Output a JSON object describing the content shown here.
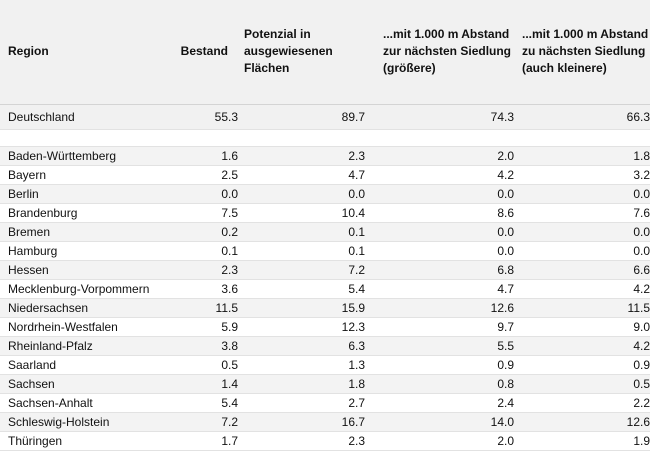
{
  "table": {
    "headers": {
      "region": "Region",
      "bestand": "Bestand",
      "potenzial": [
        "Potenzial in",
        "ausgewiesenen",
        "Flächen"
      ],
      "siedlung_groessere": [
        "...mit 1.000 m Abstand",
        "zur nächsten Siedlung",
        "(größere)"
      ],
      "siedlung_kleinere": [
        "...mit 1.000 m Abstand",
        "zu nächsten Siedlung",
        "(auch kleinere)"
      ]
    },
    "total": {
      "region": "Deutschland",
      "bestand": "55.3",
      "potenzial": "89.7",
      "siedlung_groessere": "74.3",
      "siedlung_kleinere": "66.3"
    },
    "rows": [
      {
        "region": "Baden-Württemberg",
        "bestand": "1.6",
        "potenzial": "2.3",
        "siedlung_groessere": "2.0",
        "siedlung_kleinere": "1.8"
      },
      {
        "region": "Bayern",
        "bestand": "2.5",
        "potenzial": "4.7",
        "siedlung_groessere": "4.2",
        "siedlung_kleinere": "3.2"
      },
      {
        "region": "Berlin",
        "bestand": "0.0",
        "potenzial": "0.0",
        "siedlung_groessere": "0.0",
        "siedlung_kleinere": "0.0"
      },
      {
        "region": "Brandenburg",
        "bestand": "7.5",
        "potenzial": "10.4",
        "siedlung_groessere": "8.6",
        "siedlung_kleinere": "7.6"
      },
      {
        "region": "Bremen",
        "bestand": "0.2",
        "potenzial": "0.1",
        "siedlung_groessere": "0.0",
        "siedlung_kleinere": "0.0"
      },
      {
        "region": "Hamburg",
        "bestand": "0.1",
        "potenzial": "0.1",
        "siedlung_groessere": "0.0",
        "siedlung_kleinere": "0.0"
      },
      {
        "region": "Hessen",
        "bestand": "2.3",
        "potenzial": "7.2",
        "siedlung_groessere": "6.8",
        "siedlung_kleinere": "6.6"
      },
      {
        "region": "Mecklenburg-Vorpommern",
        "bestand": "3.6",
        "potenzial": "5.4",
        "siedlung_groessere": "4.7",
        "siedlung_kleinere": "4.2"
      },
      {
        "region": "Niedersachsen",
        "bestand": "11.5",
        "potenzial": "15.9",
        "siedlung_groessere": "12.6",
        "siedlung_kleinere": "11.5"
      },
      {
        "region": "Nordrhein-Westfalen",
        "bestand": "5.9",
        "potenzial": "12.3",
        "siedlung_groessere": "9.7",
        "siedlung_kleinere": "9.0"
      },
      {
        "region": "Rheinland-Pfalz",
        "bestand": "3.8",
        "potenzial": "6.3",
        "siedlung_groessere": "5.5",
        "siedlung_kleinere": "4.2"
      },
      {
        "region": "Saarland",
        "bestand": "0.5",
        "potenzial": "1.3",
        "siedlung_groessere": "0.9",
        "siedlung_kleinere": "0.9"
      },
      {
        "region": "Sachsen",
        "bestand": "1.4",
        "potenzial": "1.8",
        "siedlung_groessere": "0.8",
        "siedlung_kleinere": "0.5"
      },
      {
        "region": "Sachsen-Anhalt",
        "bestand": "5.4",
        "potenzial": "2.7",
        "siedlung_groessere": "2.4",
        "siedlung_kleinere": "2.2"
      },
      {
        "region": "Schleswig-Holstein",
        "bestand": "7.2",
        "potenzial": "16.7",
        "siedlung_groessere": "14.0",
        "siedlung_kleinere": "12.6"
      },
      {
        "region": "Thüringen",
        "bestand": "1.7",
        "potenzial": "2.3",
        "siedlung_groessere": "2.0",
        "siedlung_kleinere": "1.9"
      }
    ]
  }
}
